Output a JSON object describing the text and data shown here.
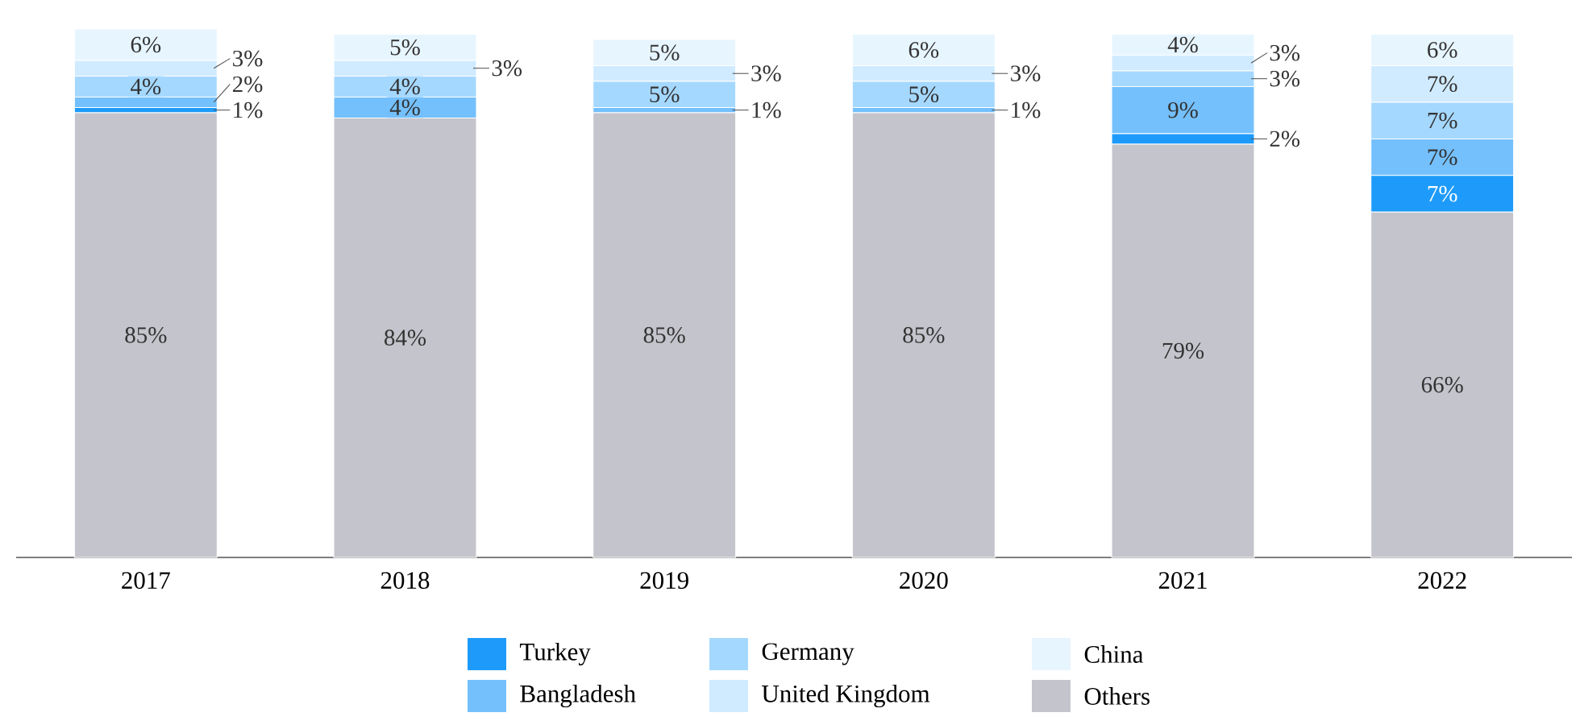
{
  "chart_data": {
    "type": "bar",
    "stacked": true,
    "categories": [
      "2017",
      "2018",
      "2019",
      "2020",
      "2021",
      "2022"
    ],
    "ylim": [
      0,
      101
    ],
    "legend": "bottom",
    "series": [
      {
        "name": "Others",
        "color": "#c4c4cc",
        "values": [
          85,
          84,
          85,
          85,
          79,
          66
        ],
        "value_labels": [
          "85%",
          "84%",
          "85%",
          "85%",
          "79%",
          "66%"
        ]
      },
      {
        "name": "Turkey",
        "color": "#1e9bfa",
        "values": [
          1,
          0,
          0,
          0,
          2,
          7
        ],
        "value_labels": [
          "1%",
          null,
          null,
          null,
          "2%",
          "7%"
        ]
      },
      {
        "name": "Bangladesh",
        "color": "#74c0fc",
        "values": [
          2,
          4,
          1,
          1,
          9,
          7
        ],
        "value_labels": [
          "2%",
          "4%",
          "1%",
          "1%",
          "9%",
          "7%"
        ]
      },
      {
        "name": "Germany",
        "color": "#a5d8ff",
        "values": [
          4,
          4,
          5,
          5,
          3,
          7
        ],
        "value_labels": [
          "4%",
          "4%",
          "5%",
          "5%",
          "3%",
          "7%"
        ]
      },
      {
        "name": "United Kingdom",
        "color": "#d0ebff",
        "values": [
          3,
          3,
          3,
          3,
          3,
          7
        ],
        "value_labels": [
          "3%",
          "3%",
          "3%",
          "3%",
          "3%",
          "7%"
        ]
      },
      {
        "name": "China",
        "color": "#e7f5ff",
        "values": [
          6,
          5,
          5,
          6,
          4,
          6
        ],
        "value_labels": [
          "6%",
          "5%",
          "5%",
          "6%",
          "4%",
          "6%"
        ]
      }
    ]
  }
}
